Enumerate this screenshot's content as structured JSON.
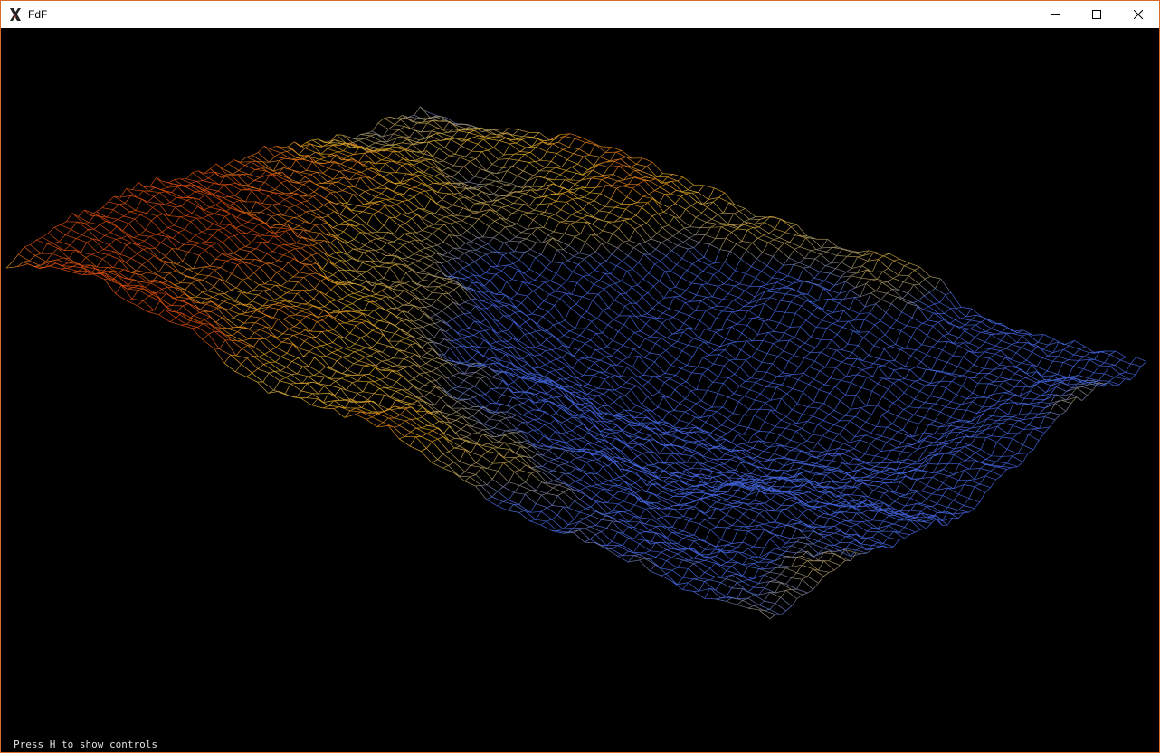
{
  "window": {
    "title": "FdF",
    "accent_border": "#d86a2a"
  },
  "titlebar": {
    "icon": "x-logo-icon",
    "buttons": [
      "minimize-icon",
      "maximize-icon",
      "close-icon"
    ]
  },
  "viewport": {
    "background": "#000000",
    "hint": "Press H to show controls",
    "palette": {
      "low": "#3f5fd0",
      "mid_low": "#9a8a5a",
      "mid": "#d4a020",
      "high": "#c8480c",
      "peak": "#ffd8c8"
    }
  }
}
